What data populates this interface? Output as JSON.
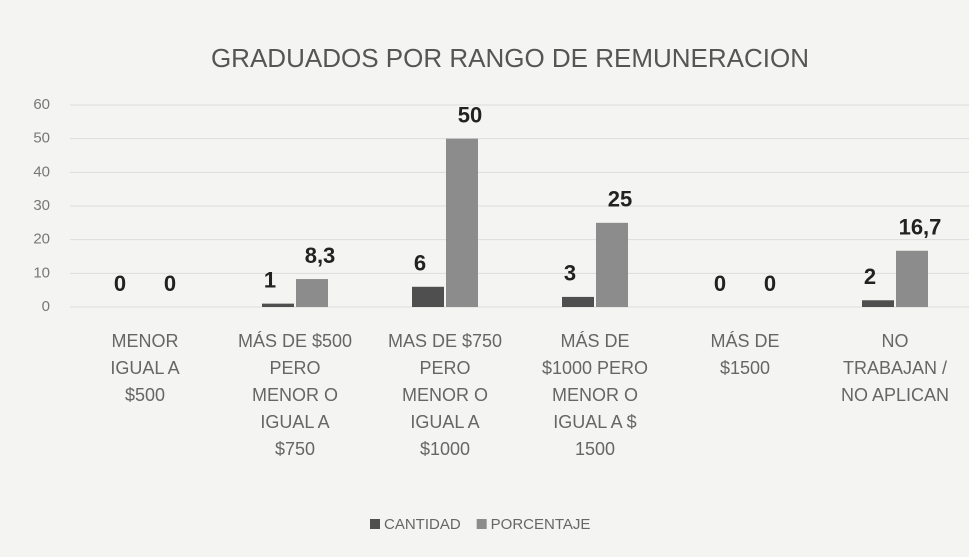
{
  "chart_data": {
    "type": "bar",
    "title": "GRADUADOS POR RANGO DE REMUNERACION",
    "categories": [
      "MENOR\nIGUAL A\n$500",
      "MÁS DE $500\nPERO\nMENOR O\nIGUAL A\n$750",
      "MAS DE $750\nPERO\nMENOR O\nIGUAL A\n$1000",
      "MÁS DE\n$1000 PERO\nMENOR O\nIGUAL A $\n1500",
      "MÁS DE\n$1500",
      "NO\nTRABAJAN /\nNO APLICAN"
    ],
    "series": [
      {
        "name": "CANTIDAD",
        "color": "#4f4f4f",
        "values": [
          0,
          1,
          6,
          3,
          0,
          2
        ]
      },
      {
        "name": "PORCENTAJE",
        "color": "#8c8c8c",
        "values": [
          0,
          8.3,
          50,
          25,
          0,
          16.7
        ],
        "value_labels": [
          "0",
          "8,3",
          "50",
          "25",
          "0",
          "16,7"
        ]
      }
    ],
    "ylim": [
      0,
      60
    ],
    "yticks": [
      0,
      10,
      20,
      30,
      40,
      50,
      60
    ],
    "grid": true,
    "legend": "bottom"
  }
}
